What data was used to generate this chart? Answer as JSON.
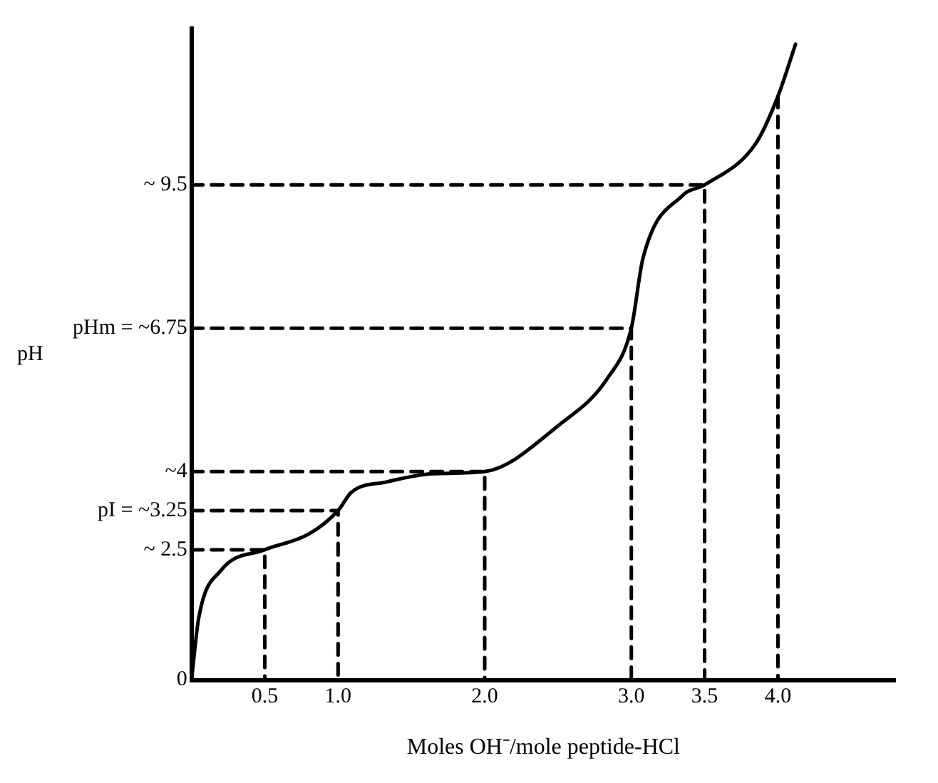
{
  "chart_data": {
    "type": "line",
    "xlabel": "Moles OH⁻/mole peptide-HCl",
    "ylabel": "pH",
    "marker": "none",
    "xlim": [
      0,
      4.8
    ],
    "ylim": [
      0,
      12.5
    ],
    "xticks": [
      {
        "value": 0.5,
        "label": "0.5"
      },
      {
        "value": 1,
        "label": "1.0"
      },
      {
        "value": 2,
        "label": "2.0"
      },
      {
        "value": 3,
        "label": "3.0"
      },
      {
        "value": 3.5,
        "label": "3.5"
      },
      {
        "value": 4,
        "label": "4.0"
      }
    ],
    "yticks": [
      0,
      {
        "value": 2.5,
        "label": "~ 2.5"
      },
      {
        "value": 3.25,
        "label": "pI = ~3.25"
      },
      {
        "value": 4,
        "label": "~4"
      },
      {
        "value": 6.75,
        "label": "pHm = ~6.75"
      },
      {
        "value": 9.5,
        "label": "~ 9.5"
      }
    ],
    "series": [
      {
        "color": "#000000",
        "line_style": "solid",
        "x": [
          0,
          0.05,
          0.2,
          0.5,
          0.8,
          1.0,
          1.09,
          1.33,
          1.65,
          2.0,
          2.51,
          2.84,
          3.0,
          3.08,
          3.35,
          3.5,
          3.85,
          4.0,
          4.12
        ],
        "values": [
          0,
          1.2,
          2.1,
          2.5,
          2.8,
          3.25,
          3.6,
          3.8,
          3.96,
          4,
          4.9,
          5.8,
          6.75,
          8.1,
          9.3,
          9.5,
          10.3,
          11.2,
          12.2
        ]
      },
      {
        "color": "#000000",
        "line_style": "dashed",
        "x": [
          0,
          0.5,
          0.5
        ],
        "values": [
          2.5,
          2.5,
          0
        ]
      },
      {
        "color": "#000000",
        "line_style": "dashed",
        "x": [
          0,
          1,
          1
        ],
        "values": [
          3.25,
          3.25,
          0
        ]
      },
      {
        "color": "#000000",
        "line_style": "dashed",
        "x": [
          0,
          2,
          2
        ],
        "values": [
          4,
          4,
          0
        ]
      },
      {
        "color": "#000000",
        "line_style": "dashed",
        "x": [
          0,
          3,
          3
        ],
        "values": [
          6.75,
          6.75,
          0
        ]
      },
      {
        "color": "#000000",
        "line_style": "dashed",
        "x": [
          0,
          3.5,
          3.5
        ],
        "values": [
          9.5,
          9.5,
          0
        ]
      },
      {
        "color": "#000000",
        "line_style": "dashed",
        "x": [
          4,
          4
        ],
        "values": [
          11.2,
          0
        ]
      }
    ]
  }
}
